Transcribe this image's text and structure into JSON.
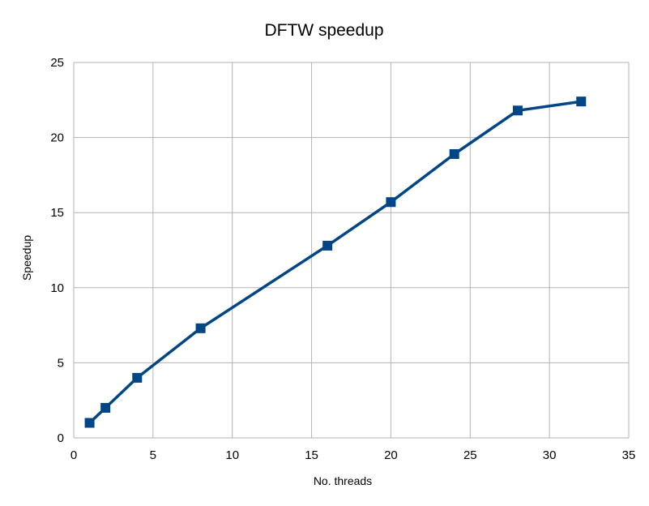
{
  "chart_data": {
    "type": "line",
    "title": "DFTW speedup",
    "xlabel": "No. threads",
    "ylabel": "Speedup",
    "xlim": [
      0,
      35
    ],
    "ylim": [
      0,
      25
    ],
    "xticks": [
      0,
      5,
      10,
      15,
      20,
      25,
      30,
      35
    ],
    "yticks": [
      0,
      5,
      10,
      15,
      20,
      25
    ],
    "grid": true,
    "legend": "none",
    "series": [
      {
        "color": "#004586",
        "marker": "square",
        "x": [
          1,
          2,
          4,
          8,
          16,
          20,
          24,
          28,
          32
        ],
        "y": [
          1.0,
          2.0,
          4.0,
          7.3,
          12.8,
          15.7,
          18.9,
          21.8,
          22.4
        ]
      }
    ]
  }
}
